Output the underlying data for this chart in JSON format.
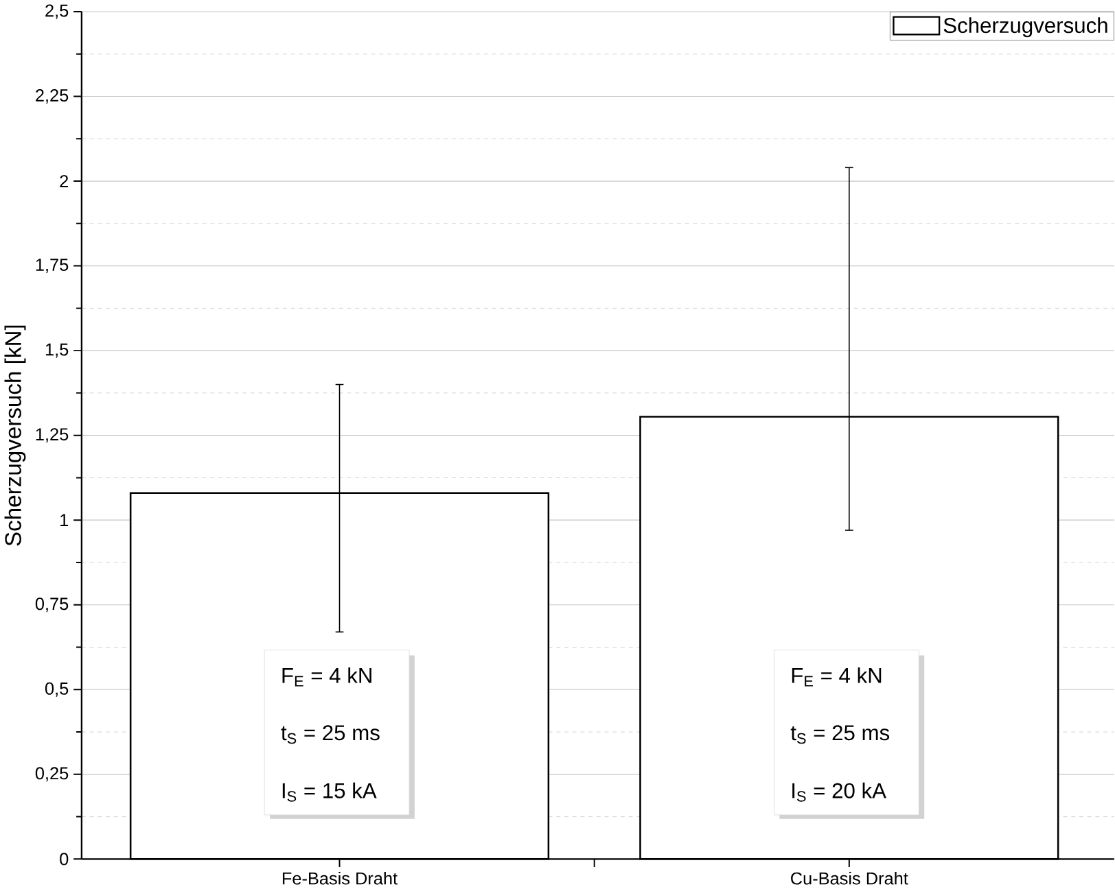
{
  "chart_data": {
    "type": "bar",
    "ylabel": "Scherzugversuch [kN]",
    "categories": [
      "Fe-Basis Draht",
      "Cu-Basis Draht"
    ],
    "series": [
      {
        "name": "Scherzugversuch",
        "color": "#ffffff",
        "values": [
          1.08,
          1.305
        ],
        "errors": [
          [
            0.67,
            1.4
          ],
          [
            0.97,
            2.04
          ]
        ]
      }
    ],
    "ylim": [
      0,
      2.5
    ],
    "yticks": [
      0,
      {
        "value": 0.25,
        "label": "0,25"
      },
      {
        "value": 0.5,
        "label": "0,5"
      },
      {
        "value": 0.75,
        "label": "0,75"
      },
      1,
      {
        "value": 1.25,
        "label": "1,25"
      },
      {
        "value": 1.5,
        "label": "1,5"
      },
      {
        "value": 1.75,
        "label": "1,75"
      },
      2,
      {
        "value": 2.25,
        "label": "2,25"
      },
      {
        "value": 2.5,
        "label": "2,5"
      }
    ],
    "grid": "y",
    "legend": "top right",
    "annotations": [
      "F$_{E}$ = 4 kN",
      "t$_{S}$ = 25 ms",
      "I$_{S}$ = 15 kA",
      "F$_{E}$ = 4 kN",
      "t$_{S}$ = 25 ms",
      "I$_{S}$ = 20 kA"
    ]
  }
}
